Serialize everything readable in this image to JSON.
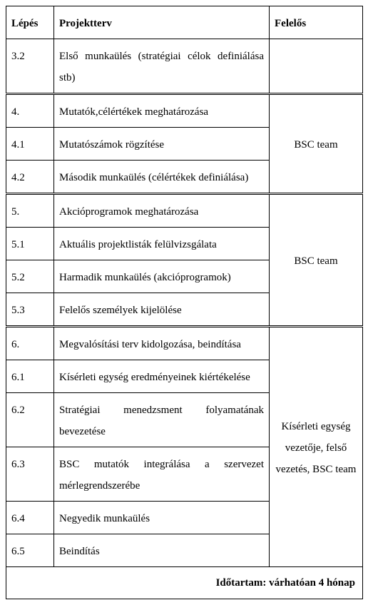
{
  "headers": {
    "c1": "Lépés",
    "c2": "Projektterv",
    "c3": "Felelős"
  },
  "r_3_2": {
    "step": "3.2",
    "plan": "Első munkaülés (stratégiai célok definiálása stb)"
  },
  "r_4": {
    "step": "4.",
    "plan": "Mutatók,célértékek meghatározása"
  },
  "r_4_1": {
    "step": "4.1",
    "plan": "Mutatószámok rögzítése"
  },
  "r_4_2": {
    "step": "4.2",
    "plan": "Második munkaülés (célértékek definiálása)"
  },
  "resp_g4": "BSC team",
  "r_5": {
    "step": "5.",
    "plan": "Akcióprogramok meghatározása"
  },
  "r_5_1": {
    "step": "5.1",
    "plan": "Aktuális projektlisták felülvizsgálata"
  },
  "r_5_2": {
    "step": "5.2",
    "plan": "Harmadik munkaülés (akcióprogramok)"
  },
  "r_5_3": {
    "step": "5.3",
    "plan": "Felelős személyek kijelölése"
  },
  "resp_g5": "BSC team",
  "r_6": {
    "step": "6.",
    "plan": "Megvalósítási terv kidolgozása, beindítása"
  },
  "r_6_1": {
    "step": "6.1",
    "plan": "Kísérleti egység eredményeinek kiértékelése"
  },
  "r_6_2": {
    "step": "6.2",
    "plan": "Stratégiai menedzsment folyamatának bevezetése"
  },
  "r_6_3": {
    "step": "6.3",
    "plan": "BSC mutatók integrálása a szervezet mérlegrendszerébe"
  },
  "r_6_4": {
    "step": "6.4",
    "plan": "Negyedik munkaülés"
  },
  "r_6_5": {
    "step": "6.5",
    "plan": "Beindítás"
  },
  "resp_g6": "Kísérleti egység vezetője, felső vezetés, BSC team",
  "footer": "Időtartam: várhatóan 4 hónap",
  "colors": {
    "border": "#000000",
    "bg": "#ffffff",
    "text": "#000000"
  }
}
